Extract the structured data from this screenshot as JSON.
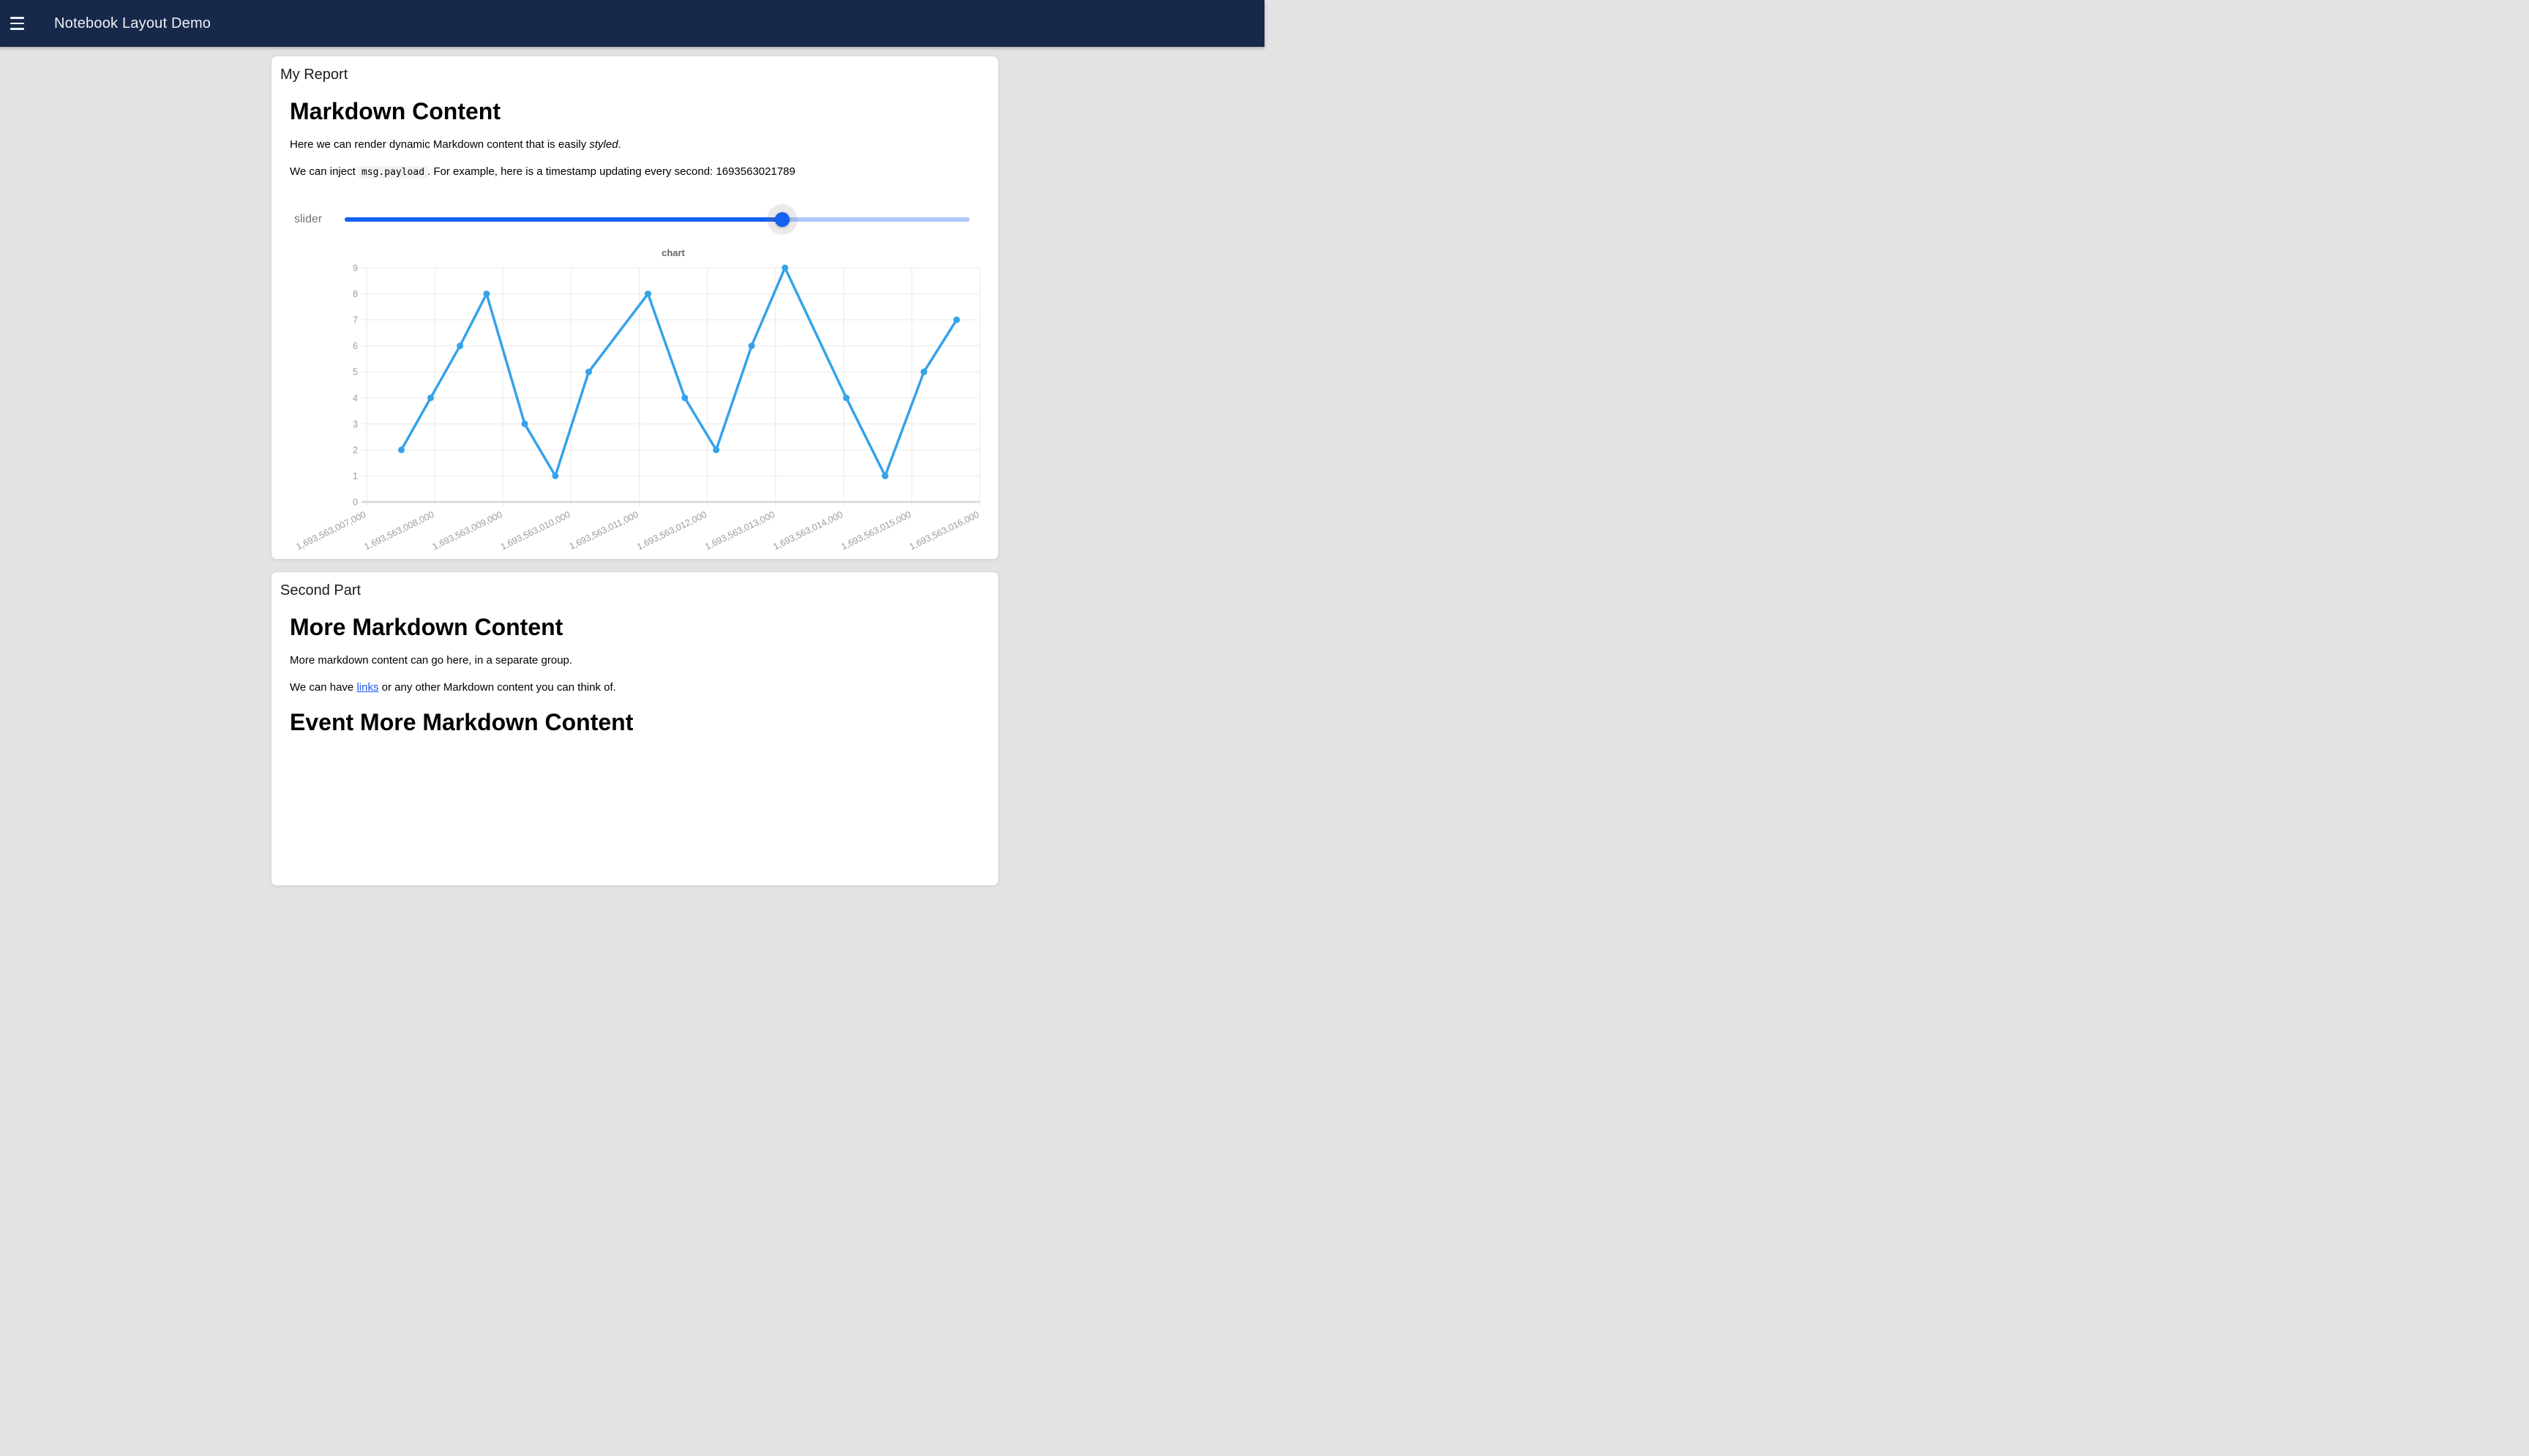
{
  "appbar": {
    "title": "Notebook Layout Demo",
    "bg_color": "#16294a"
  },
  "report_card": {
    "title": "My Report",
    "markdown": {
      "heading": "Markdown Content",
      "para1": {
        "before": "Here we can render dynamic Markdown content that is easily ",
        "italic": "styled",
        "after": "."
      },
      "para2": {
        "before": "We can inject ",
        "code": "msg.payload",
        "middle": ". For example, here is a timestamp updating every second: ",
        "timestamp": "1693563021789"
      }
    },
    "slider": {
      "label": "slider",
      "fraction": 0.7,
      "active_color": "#1660f2",
      "inactive_color": "#adc8fb"
    }
  },
  "second_card": {
    "title": "Second Part",
    "heading1": "More Markdown Content",
    "para1": "More markdown content can go here, in a separate group.",
    "para2": {
      "before": "We can have ",
      "link": "links",
      "after": " or any other Markdown content you can think of."
    },
    "heading2": "Event More Markdown Content",
    "link_color": "#1b59f1"
  },
  "chart_data": {
    "type": "line",
    "title": "chart",
    "xlabel": "",
    "ylabel": "",
    "legend": "none",
    "grid": true,
    "line_color": "#36a2eb",
    "xlim": [
      1693563007000,
      1693563016000
    ],
    "ylim": [
      0,
      9
    ],
    "y_ticks": [
      0,
      1,
      2,
      3,
      4,
      5,
      6,
      7,
      8,
      9
    ],
    "x_tick_values": [
      1693563007000,
      1693563008000,
      1693563009000,
      1693563010000,
      1693563011000,
      1693563012000,
      1693563013000,
      1693563014000,
      1693563015000,
      1693563016000
    ],
    "x_tick_labels": [
      "1,693,563,007,000",
      "1,693,563,008,000",
      "1,693,563,009,000",
      "1,693,563,010,000",
      "1,693,563,011,000",
      "1,693,563,012,000",
      "1,693,563,013,000",
      "1,693,563,014,000",
      "1,693,563,015,000",
      "1,693,563,016,000"
    ],
    "series": [
      {
        "name": "chart",
        "x": [
          1693563007510,
          1693563007940,
          1693563008370,
          1693563008760,
          1693563009320,
          1693563009770,
          1693563010260,
          1693563011130,
          1693563011670,
          1693563012130,
          1693563012650,
          1693563013140,
          1693563014040,
          1693563014610,
          1693563015180,
          1693563015660
        ],
        "values": [
          2,
          4,
          6,
          8,
          3,
          1,
          5,
          8,
          4,
          2,
          6,
          9,
          4,
          1,
          5,
          7
        ]
      }
    ]
  }
}
